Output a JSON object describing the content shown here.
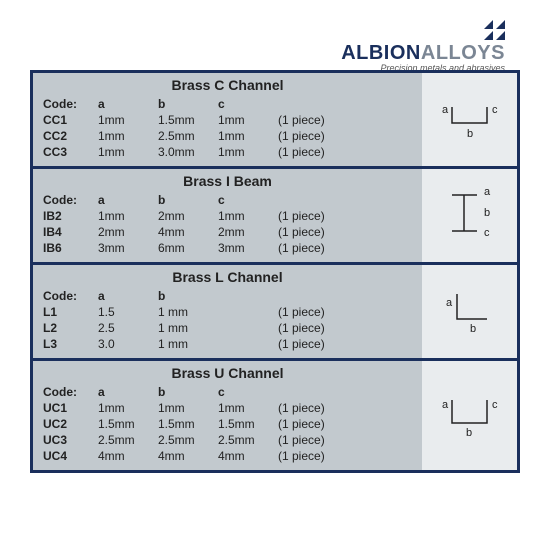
{
  "logo": {
    "brand1": "ALBION",
    "brand2": "ALLOYS",
    "tagline": "Precision metals and abrasives"
  },
  "sections": [
    {
      "title": "Brass C Channel",
      "columns": [
        "Code:",
        "a",
        "b",
        "c",
        ""
      ],
      "rows": [
        [
          "CC1",
          "1mm",
          "1.5mm",
          "1mm",
          "(1 piece)"
        ],
        [
          "CC2",
          "1mm",
          "2.5mm",
          "1mm",
          "(1 piece)"
        ],
        [
          "CC3",
          "1mm",
          "3.0mm",
          "1mm",
          "(1 piece)"
        ]
      ],
      "diagram": "c-channel",
      "labels": {
        "a": "a",
        "b": "b",
        "c": "c"
      }
    },
    {
      "title": "Brass I Beam",
      "columns": [
        "Code:",
        "a",
        "b",
        "c",
        ""
      ],
      "rows": [
        [
          "IB2",
          "1mm",
          "2mm",
          "1mm",
          "(1 piece)"
        ],
        [
          "IB4",
          "2mm",
          "4mm",
          "2mm",
          "(1 piece)"
        ],
        [
          "IB6",
          "3mm",
          "6mm",
          "3mm",
          "(1 piece)"
        ]
      ],
      "diagram": "i-beam",
      "labels": {
        "a": "a",
        "b": "b",
        "c": "c"
      }
    },
    {
      "title": "Brass L Channel",
      "columns": [
        "Code:",
        "a",
        "b",
        "",
        ""
      ],
      "rows": [
        [
          "L1",
          "1.5",
          "1 mm",
          "",
          "(1 piece)"
        ],
        [
          "L2",
          "2.5",
          "1 mm",
          "",
          "(1 piece)"
        ],
        [
          "L3",
          "3.0",
          "1 mm",
          "",
          "(1 piece)"
        ]
      ],
      "diagram": "l-channel",
      "labels": {
        "a": "a",
        "b": "b"
      }
    },
    {
      "title": "Brass U Channel",
      "columns": [
        "Code:",
        "a",
        "b",
        "c",
        ""
      ],
      "rows": [
        [
          "UC1",
          "1mm",
          "1mm",
          "1mm",
          "(1 piece)"
        ],
        [
          "UC2",
          "1.5mm",
          "1.5mm",
          "1.5mm",
          "(1 piece)"
        ],
        [
          "UC3",
          "2.5mm",
          "2.5mm",
          "2.5mm",
          "(1 piece)"
        ],
        [
          "UC4",
          "4mm",
          "4mm",
          "4mm",
          "(1 piece)"
        ]
      ],
      "diagram": "u-channel",
      "labels": {
        "a": "a",
        "b": "b",
        "c": "c"
      }
    }
  ],
  "colors": {
    "border": "#1a2f5c",
    "data_bg": "#c2c9ce",
    "diagram_bg": "#e9ecee",
    "shape_stroke": "#222"
  }
}
